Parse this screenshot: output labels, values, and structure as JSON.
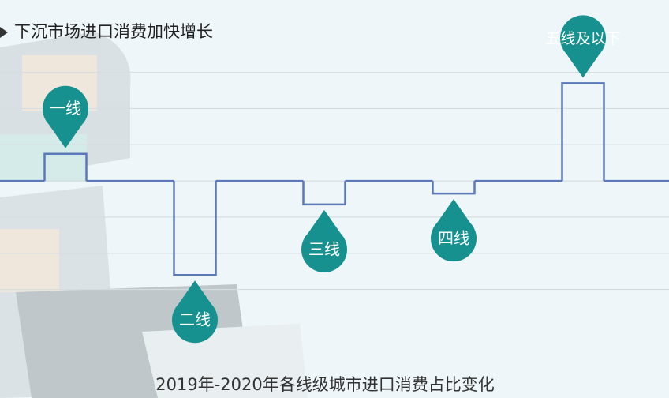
{
  "chart_data": {
    "type": "step",
    "title": "下沉市场进口消费加快增长",
    "caption": "2019年-2020年各线级城市进口消费占比变化",
    "categories": [
      "一线",
      "二线",
      "三线",
      "四线",
      "五线及以下"
    ],
    "values": [
      0.75,
      -2.6,
      -0.65,
      -0.35,
      2.7
    ],
    "color": "#5b78b8",
    "marker_color": "#16918f",
    "ylim": [
      -6,
      5
    ],
    "yticks": [
      -3,
      -2,
      -1,
      0,
      1,
      2,
      3
    ],
    "grid": true
  }
}
